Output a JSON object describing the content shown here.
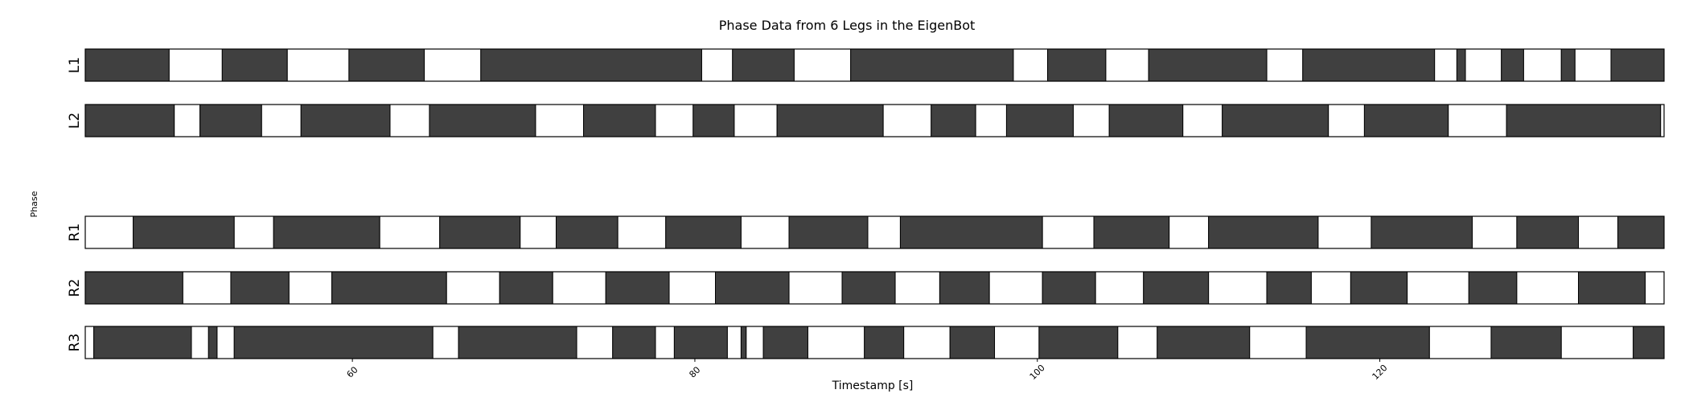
{
  "chart_data": {
    "type": "bar",
    "title": "Phase Data from 6 Legs in the EigenBot",
    "xlabel": "Timestamp [s]",
    "ylabel": "Phase",
    "xlim": [
      44.4,
      136.6
    ],
    "xticks": [
      60,
      80,
      100,
      120
    ],
    "series": [
      {
        "name": "L1",
        "color": "#404040",
        "segments": [
          [
            44.4,
            49.3
          ],
          [
            52.4,
            56.2
          ],
          [
            59.8,
            64.2
          ],
          [
            67.5,
            80.4
          ],
          [
            82.2,
            85.8
          ],
          [
            89.1,
            98.6
          ],
          [
            100.6,
            104.0
          ],
          [
            106.5,
            113.4
          ],
          [
            115.5,
            123.2
          ],
          [
            124.5,
            125.0
          ],
          [
            127.1,
            128.4
          ],
          [
            130.6,
            131.4
          ],
          [
            133.5,
            136.6
          ]
        ]
      },
      {
        "name": "L2",
        "color": "#404040",
        "segments": [
          [
            44.4,
            49.6
          ],
          [
            51.1,
            54.7
          ],
          [
            57.0,
            62.2
          ],
          [
            64.5,
            70.7
          ],
          [
            73.5,
            77.7
          ],
          [
            79.9,
            82.3
          ],
          [
            84.8,
            91.0
          ],
          [
            93.8,
            96.4
          ],
          [
            98.2,
            102.1
          ],
          [
            104.2,
            108.5
          ],
          [
            110.8,
            117.0
          ],
          [
            119.1,
            124.0
          ],
          [
            127.4,
            136.4
          ]
        ]
      },
      {
        "name": "R1",
        "color": "#404040",
        "segments": [
          [
            47.2,
            53.1
          ],
          [
            55.4,
            61.6
          ],
          [
            65.1,
            69.8
          ],
          [
            71.9,
            75.5
          ],
          [
            78.3,
            82.7
          ],
          [
            85.5,
            90.1
          ],
          [
            92.0,
            100.3
          ],
          [
            103.3,
            107.7
          ],
          [
            110.0,
            116.4
          ],
          [
            119.5,
            125.4
          ],
          [
            128.0,
            131.6
          ],
          [
            133.9,
            136.6
          ]
        ]
      },
      {
        "name": "R2",
        "color": "#404040",
        "segments": [
          [
            44.4,
            50.1
          ],
          [
            52.9,
            56.3
          ],
          [
            58.8,
            65.5
          ],
          [
            68.6,
            71.7
          ],
          [
            74.8,
            78.5
          ],
          [
            81.2,
            85.5
          ],
          [
            88.6,
            91.7
          ],
          [
            94.3,
            97.2
          ],
          [
            100.3,
            103.4
          ],
          [
            106.2,
            110.0
          ],
          [
            113.4,
            116.0
          ],
          [
            118.3,
            121.6
          ],
          [
            125.2,
            128.0
          ],
          [
            131.6,
            135.5
          ]
        ]
      },
      {
        "name": "R3",
        "color": "#404040",
        "segments": [
          [
            44.9,
            50.6
          ],
          [
            51.6,
            52.1
          ],
          [
            53.1,
            64.7
          ],
          [
            66.2,
            73.1
          ],
          [
            75.2,
            77.7
          ],
          [
            78.8,
            81.9
          ],
          [
            82.7,
            83.0
          ],
          [
            84.0,
            86.6
          ],
          [
            89.9,
            92.2
          ],
          [
            94.9,
            97.5
          ],
          [
            100.1,
            104.7
          ],
          [
            107.0,
            112.4
          ],
          [
            115.7,
            122.9
          ],
          [
            126.5,
            130.6
          ],
          [
            134.8,
            136.6
          ]
        ]
      }
    ],
    "grid": false,
    "legend": "none"
  }
}
